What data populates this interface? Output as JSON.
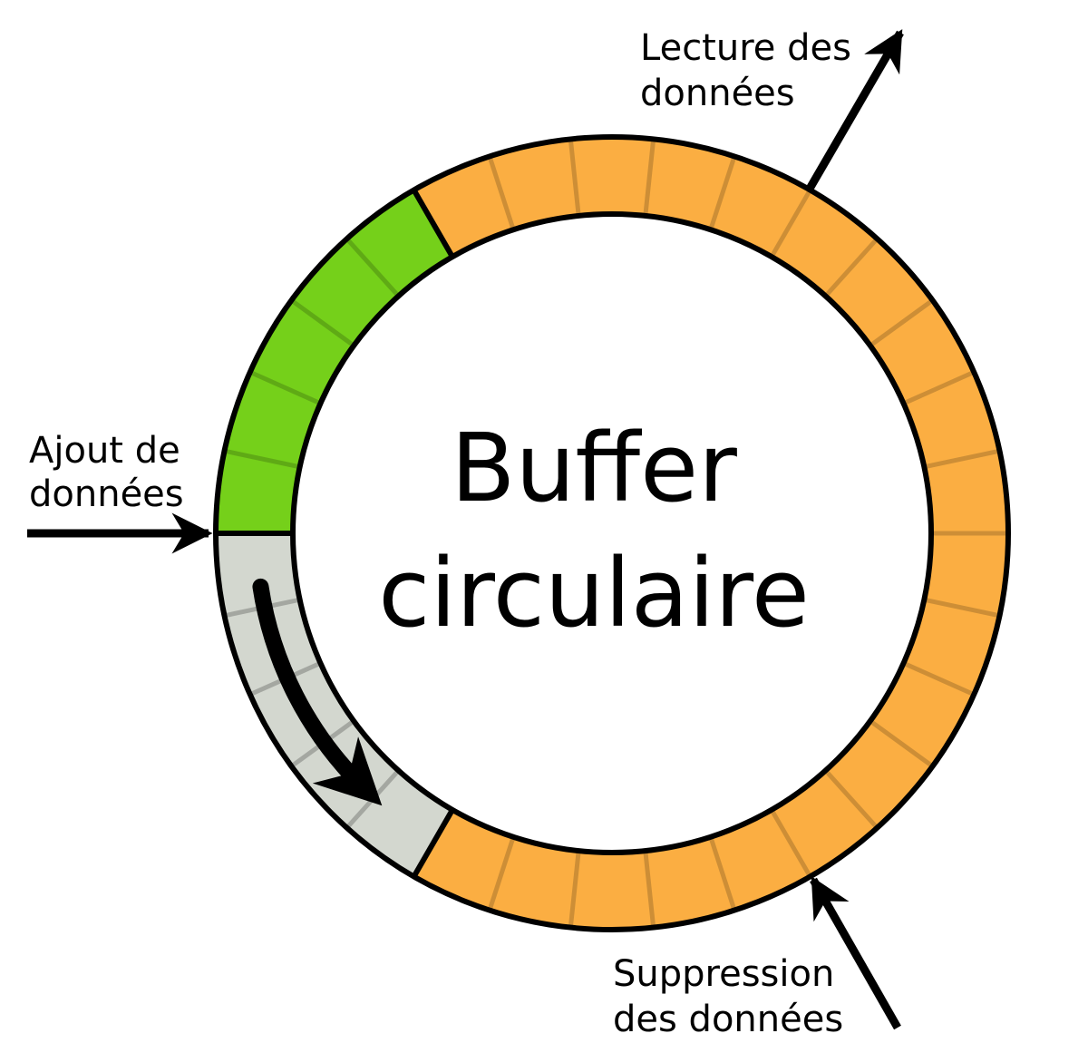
{
  "title": {
    "line1": "Buffer",
    "line2": "circulaire"
  },
  "labels": {
    "write": {
      "line1": "Ajout de",
      "line2": "données"
    },
    "read": {
      "line1": "Lecture des",
      "line2": "données"
    },
    "remove": {
      "line1": "Suppression",
      "line2": "des données"
    }
  },
  "colors": {
    "written": "#75d01a",
    "pending": "#fbae42",
    "free": "#d3d7cf",
    "outline": "#000000"
  },
  "buffer": {
    "total_slots": 30,
    "write_pointer_slot": 15,
    "read_pointer_slot": 10,
    "delete_pointer_slot": 20,
    "regions": [
      {
        "name": "written-data",
        "from_slot": 10,
        "to_slot": 15,
        "color_key": "written"
      },
      {
        "name": "pending-data",
        "from_slot": 20,
        "to_slot": 10,
        "color_key": "pending"
      },
      {
        "name": "free-space",
        "from_slot": 15,
        "to_slot": 20,
        "color_key": "free"
      }
    ]
  }
}
